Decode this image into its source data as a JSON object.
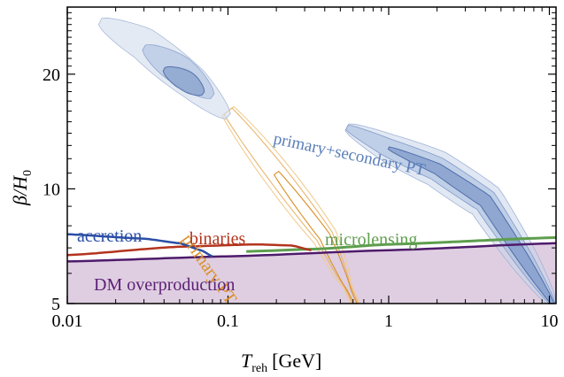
{
  "chart_data": {
    "type": "area",
    "x_axis": {
      "label_main": "T",
      "label_sub": "reh",
      "label_unit": "[GeV]",
      "scale": "log",
      "range": [
        0.01,
        11
      ],
      "ticks": [
        {
          "value": 0.01,
          "label": "0.01"
        },
        {
          "value": 0.1,
          "label": "0.1"
        },
        {
          "value": 1,
          "label": "1"
        },
        {
          "value": 10,
          "label": "10"
        }
      ]
    },
    "y_axis": {
      "label_main": "β/H",
      "label_sub": "0",
      "scale": "log",
      "range": [
        5,
        30
      ],
      "ticks": [
        {
          "value": 5,
          "label": "5"
        },
        {
          "value": 10,
          "label": "10"
        },
        {
          "value": 20,
          "label": "20"
        }
      ]
    },
    "constraints": [
      {
        "name": "DM overproduction",
        "color": "#5c2176",
        "fill": "#d9c6dc",
        "x": [
          0.01,
          0.1,
          1,
          11
        ],
        "y": [
          6.45,
          6.65,
          6.9,
          7.2
        ]
      },
      {
        "name": "accretion",
        "color": "#2b4ea6",
        "x": [
          0.01,
          0.03,
          0.05,
          0.068,
          0.08
        ],
        "y": [
          7.6,
          7.4,
          7.2,
          6.9,
          6.65
        ]
      },
      {
        "name": "binaries",
        "color": "#b3341e",
        "x": [
          0.01,
          0.05,
          0.15,
          0.25,
          0.33
        ],
        "y": [
          6.7,
          7.05,
          7.15,
          7.1,
          6.9
        ]
      },
      {
        "name": "microlensing",
        "color": "#5e9e4e",
        "x": [
          0.13,
          0.35,
          1,
          11
        ],
        "y": [
          6.85,
          6.95,
          7.15,
          7.45
        ]
      }
    ],
    "regions": [
      {
        "name": "primary PT",
        "color": "#e6a030",
        "center": [
          [
            0.02,
            27
          ],
          [
            0.05,
            21
          ],
          [
            0.1,
            16
          ],
          [
            0.2,
            11
          ],
          [
            0.4,
            7.5
          ],
          [
            0.62,
            5
          ]
        ]
      },
      {
        "name": "primary+secondary PT",
        "color": "#5a7fb8",
        "center": [
          [
            0.55,
            14.5
          ],
          [
            1,
            12.8
          ],
          [
            2,
            11.3
          ],
          [
            4,
            9.3
          ],
          [
            7,
            6.5
          ],
          [
            10.5,
            5.0
          ]
        ]
      }
    ]
  }
}
